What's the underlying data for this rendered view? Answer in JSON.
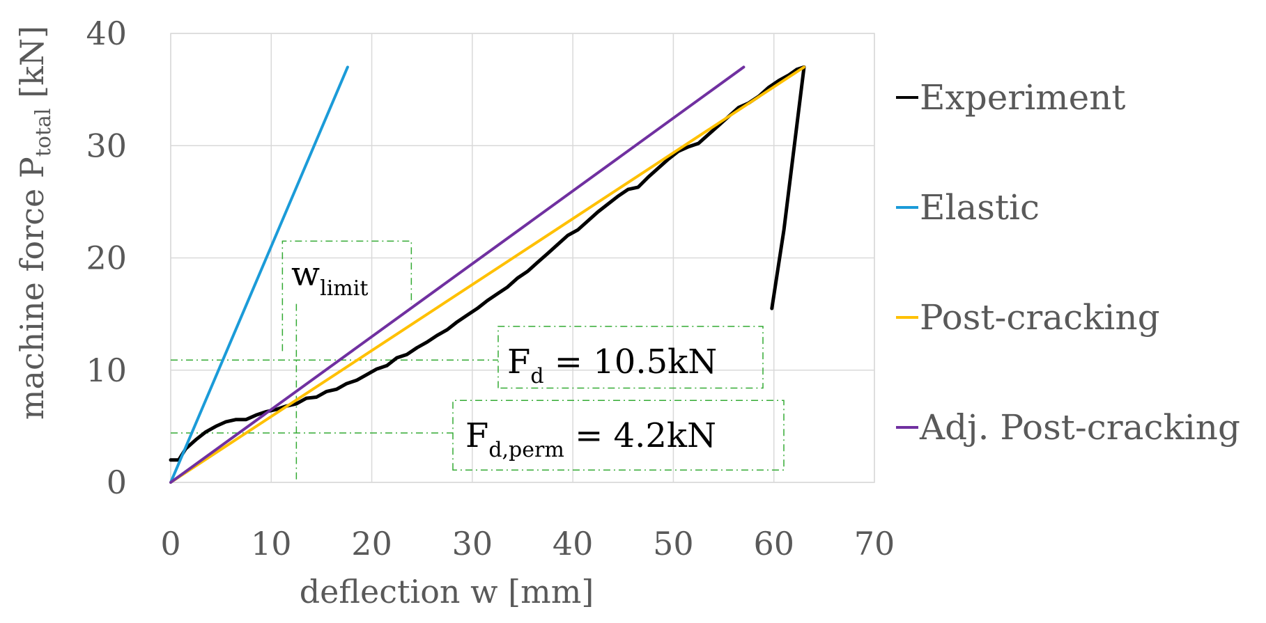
{
  "chart_data": {
    "type": "line",
    "title": "",
    "xlabel": "deflection w [mm]",
    "ylabel": {
      "main": "machine force P",
      "sub": "total",
      "unit": " [kN]"
    },
    "xlim": [
      0,
      70
    ],
    "ylim": [
      0,
      40
    ],
    "xticks": [
      0,
      10,
      20,
      30,
      40,
      50,
      60,
      70
    ],
    "yticks": [
      0,
      10,
      20,
      30,
      40
    ],
    "xtick_labels": [
      "0",
      "10",
      "20",
      "30",
      "40",
      "50",
      "60",
      "70"
    ],
    "ytick_labels": [
      "0",
      "10",
      "20",
      "30",
      "40"
    ],
    "grid": true,
    "legend_position": "right",
    "series": [
      {
        "name": "Experiment",
        "color": "#000000",
        "points": [
          [
            0,
            2
          ],
          [
            0.8,
            2
          ],
          [
            1.5,
            3
          ],
          [
            2.5,
            3.8
          ],
          [
            3.5,
            4.5
          ],
          [
            4.5,
            5
          ],
          [
            5.5,
            5.4
          ],
          [
            6.5,
            5.6
          ],
          [
            7.5,
            5.6
          ],
          [
            8.5,
            6
          ],
          [
            9.5,
            6.3
          ],
          [
            10.5,
            6.5
          ],
          [
            11.5,
            6.8
          ],
          [
            12.5,
            7
          ],
          [
            13.5,
            7.5
          ],
          [
            14.5,
            7.6
          ],
          [
            15.5,
            8.1
          ],
          [
            16.5,
            8.3
          ],
          [
            17.5,
            8.8
          ],
          [
            18.5,
            9.1
          ],
          [
            19.5,
            9.6
          ],
          [
            20.5,
            10.1
          ],
          [
            21.5,
            10.4
          ],
          [
            22.5,
            11.1
          ],
          [
            23.5,
            11.4
          ],
          [
            24.5,
            12
          ],
          [
            25.5,
            12.5
          ],
          [
            26.5,
            13.1
          ],
          [
            27.5,
            13.6
          ],
          [
            28.5,
            14.3
          ],
          [
            29.5,
            14.9
          ],
          [
            30.5,
            15.5
          ],
          [
            31.5,
            16.2
          ],
          [
            32.5,
            16.8
          ],
          [
            33.5,
            17.4
          ],
          [
            34.5,
            18.2
          ],
          [
            35.5,
            18.8
          ],
          [
            36.5,
            19.6
          ],
          [
            37.5,
            20.4
          ],
          [
            38.5,
            21.2
          ],
          [
            39.5,
            22
          ],
          [
            40.5,
            22.5
          ],
          [
            41.5,
            23.3
          ],
          [
            42.5,
            24.1
          ],
          [
            43.5,
            24.8
          ],
          [
            44.5,
            25.5
          ],
          [
            45.5,
            26.1
          ],
          [
            46.5,
            26.3
          ],
          [
            47.5,
            27.2
          ],
          [
            48.5,
            28
          ],
          [
            49.5,
            28.8
          ],
          [
            50.5,
            29.5
          ],
          [
            51.5,
            29.9
          ],
          [
            52.5,
            30.2
          ],
          [
            53.5,
            31
          ],
          [
            54.5,
            31.8
          ],
          [
            55.5,
            32.6
          ],
          [
            56.5,
            33.4
          ],
          [
            57.5,
            33.8
          ],
          [
            58.5,
            34.4
          ],
          [
            59.5,
            35.2
          ],
          [
            60.5,
            35.8
          ],
          [
            61.5,
            36.3
          ],
          [
            62.3,
            36.8
          ],
          [
            63,
            37
          ],
          [
            61,
            22.5
          ],
          [
            59.8,
            15.5
          ]
        ]
      },
      {
        "name": "Elastic",
        "color": "#1b9bd8",
        "points": [
          [
            0,
            0
          ],
          [
            17.6,
            37
          ]
        ]
      },
      {
        "name": "Post-cracking",
        "color": "#ffc000",
        "points": [
          [
            0,
            0
          ],
          [
            63,
            37
          ]
        ]
      },
      {
        "name": "Adj. Post-cracking",
        "color": "#7030a0",
        "points": [
          [
            0,
            0
          ],
          [
            57,
            37
          ]
        ]
      }
    ],
    "annotations": {
      "w_limit": {
        "main": "w",
        "sub": "limit",
        "x": 12.5
      },
      "F_d": {
        "main": "F",
        "sub": "d",
        "rest": " = 10.5kN",
        "y": 10.9
      },
      "F_d_perm": {
        "main": "F",
        "sub": "d,perm",
        "rest": " = 4.2kN",
        "y": 4.4
      }
    }
  },
  "colors": {
    "grid": "#d9d9d9",
    "text": "#595959",
    "guide": "#33aa33"
  }
}
